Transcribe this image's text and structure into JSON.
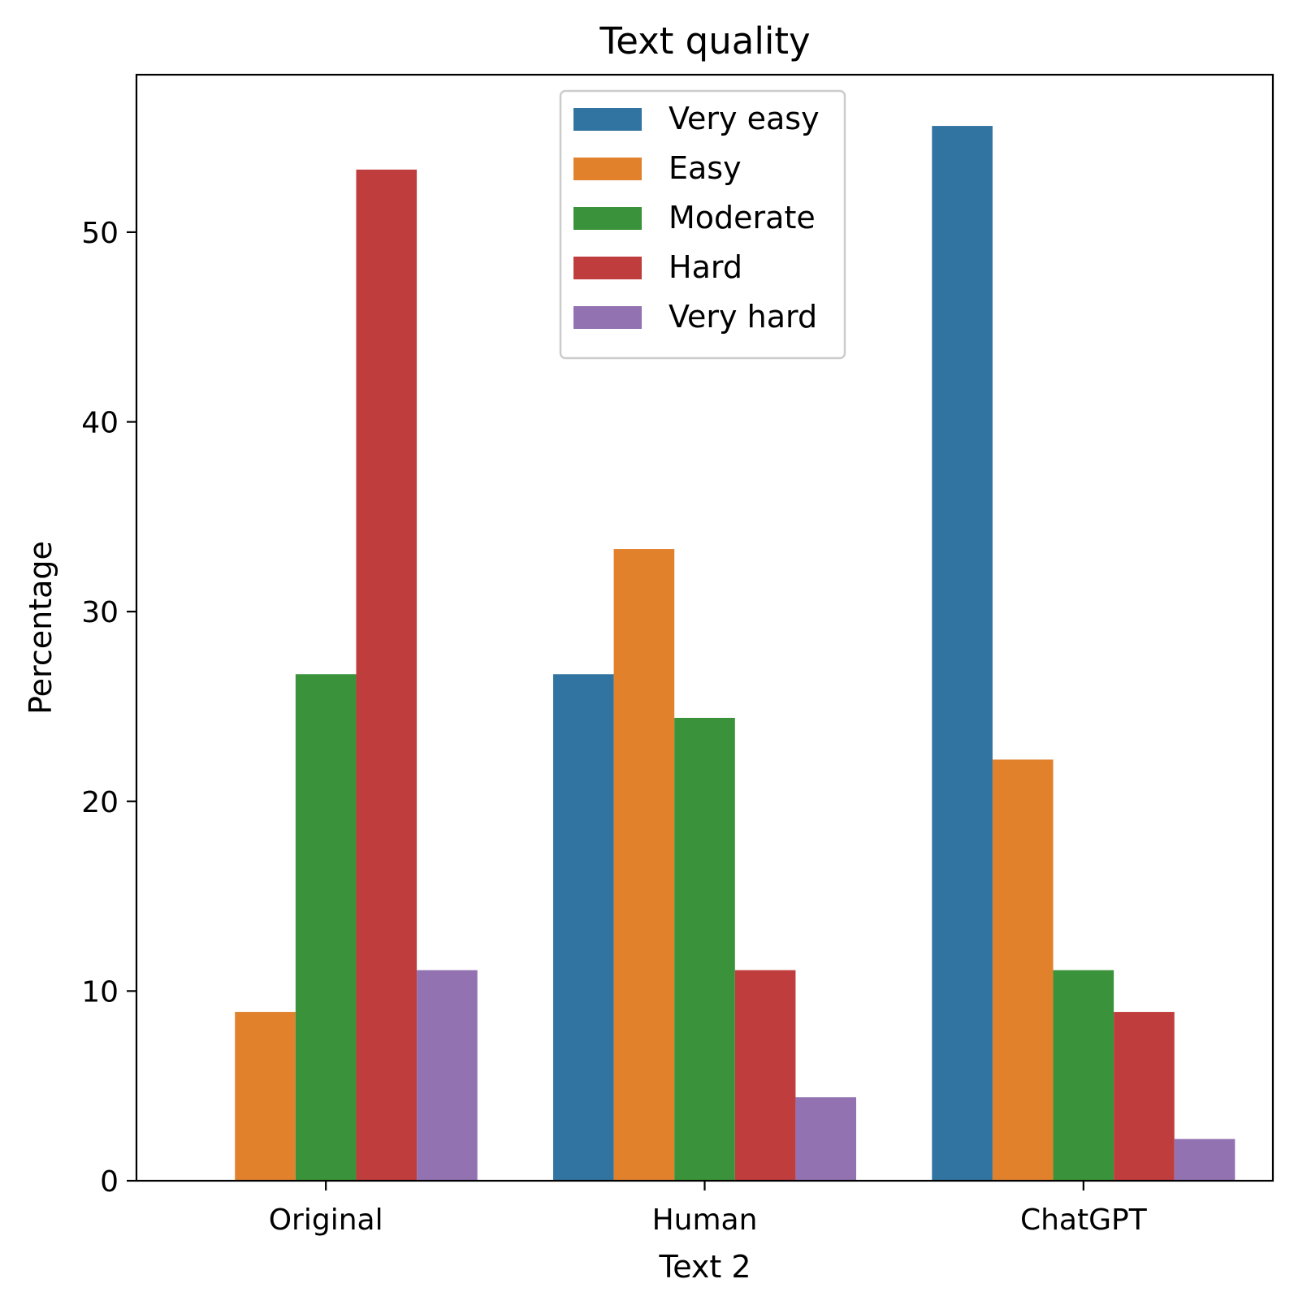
{
  "chart_data": {
    "type": "bar",
    "title": "Text quality",
    "xlabel": "Text 2",
    "ylabel": "Percentage",
    "categories": [
      "Original",
      "Human",
      "ChatGPT"
    ],
    "ylim": [
      0,
      58.3
    ],
    "yticks": [
      0,
      10,
      20,
      30,
      40,
      50
    ],
    "grid": false,
    "legend_position": "top-center",
    "series": [
      {
        "name": "Very easy",
        "color": "#3274a1",
        "values": [
          0,
          26.7,
          55.6
        ]
      },
      {
        "name": "Easy",
        "color": "#e1812c",
        "values": [
          8.9,
          33.3,
          22.2
        ]
      },
      {
        "name": "Moderate",
        "color": "#3a923a",
        "values": [
          26.7,
          24.4,
          11.1
        ]
      },
      {
        "name": "Hard",
        "color": "#c03d3e",
        "values": [
          53.3,
          11.1,
          8.9
        ]
      },
      {
        "name": "Very hard",
        "color": "#9372b2",
        "values": [
          11.1,
          4.4,
          2.2
        ]
      }
    ]
  }
}
